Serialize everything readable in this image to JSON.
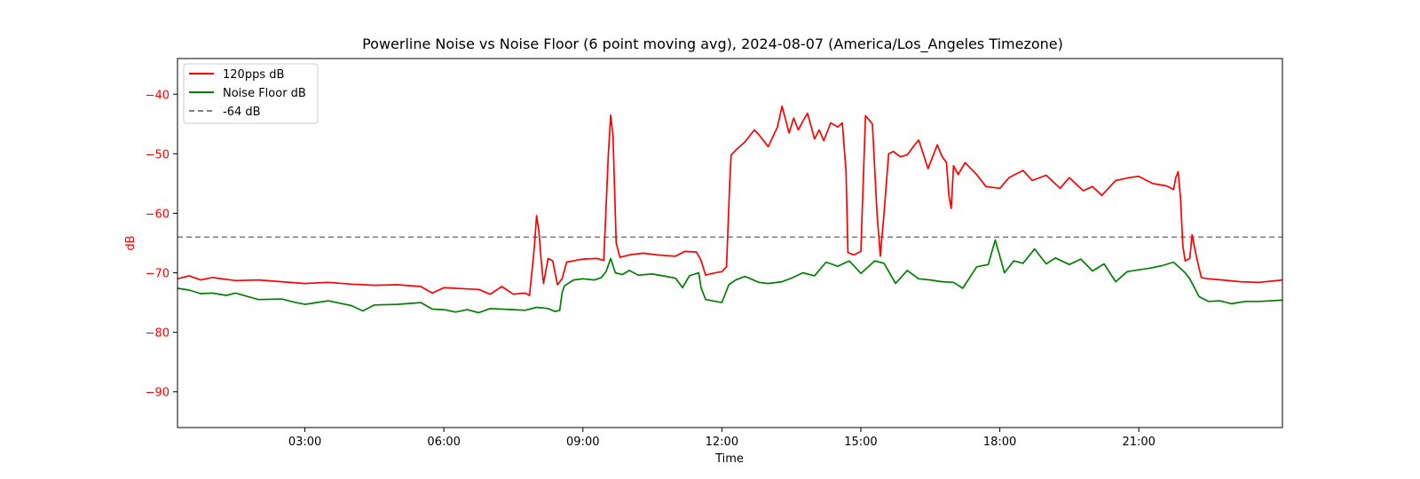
{
  "chart_data": {
    "type": "line",
    "title": "Powerline Noise vs Noise Floor (6 point moving avg), 2024-08-07 (America/Los_Angeles Timezone)",
    "xlabel": "Time",
    "ylabel": "dB",
    "x_unit": "hours since 00:00 (time of day)",
    "xlim": [
      0.25,
      24.1
    ],
    "ylim": [
      -96,
      -34
    ],
    "x_ticks": [
      3,
      6,
      9,
      12,
      15,
      18,
      21
    ],
    "x_tick_labels": [
      "03:00",
      "06:00",
      "09:00",
      "12:00",
      "15:00",
      "18:00",
      "21:00"
    ],
    "y_ticks": [
      -90,
      -80,
      -70,
      -60,
      -50,
      -40
    ],
    "y_tick_labels": [
      "−90",
      "−80",
      "−70",
      "−60",
      "−50",
      "−40"
    ],
    "grid": false,
    "legend_position": "upper-left",
    "reference_line": {
      "name": "-64 dB",
      "y": -64,
      "color": "#808080",
      "style": "dashed"
    },
    "series": [
      {
        "name": "120pps dB",
        "color": "#ff0000",
        "points": [
          [
            0.25,
            -71.0
          ],
          [
            0.5,
            -70.5
          ],
          [
            0.75,
            -71.2
          ],
          [
            1.0,
            -70.8
          ],
          [
            1.5,
            -71.3
          ],
          [
            2.0,
            -71.2
          ],
          [
            2.5,
            -71.5
          ],
          [
            3.0,
            -71.8
          ],
          [
            3.5,
            -71.6
          ],
          [
            4.0,
            -71.9
          ],
          [
            4.5,
            -72.1
          ],
          [
            5.0,
            -72.0
          ],
          [
            5.5,
            -72.3
          ],
          [
            5.75,
            -73.4
          ],
          [
            6.0,
            -72.5
          ],
          [
            6.5,
            -72.7
          ],
          [
            6.75,
            -72.8
          ],
          [
            7.0,
            -73.6
          ],
          [
            7.25,
            -72.3
          ],
          [
            7.5,
            -73.6
          ],
          [
            7.75,
            -73.4
          ],
          [
            7.85,
            -73.8
          ],
          [
            7.95,
            -66.0
          ],
          [
            8.0,
            -60.4
          ],
          [
            8.05,
            -63.0
          ],
          [
            8.1,
            -68.0
          ],
          [
            8.15,
            -71.8
          ],
          [
            8.25,
            -67.6
          ],
          [
            8.35,
            -68.0
          ],
          [
            8.45,
            -72.0
          ],
          [
            8.55,
            -71.0
          ],
          [
            8.65,
            -68.2
          ],
          [
            9.0,
            -67.7
          ],
          [
            9.3,
            -67.6
          ],
          [
            9.45,
            -67.9
          ],
          [
            9.55,
            -50.0
          ],
          [
            9.6,
            -43.5
          ],
          [
            9.65,
            -47.0
          ],
          [
            9.72,
            -65.0
          ],
          [
            9.8,
            -67.4
          ],
          [
            10.0,
            -67.0
          ],
          [
            10.3,
            -66.7
          ],
          [
            10.6,
            -67.0
          ],
          [
            11.0,
            -67.2
          ],
          [
            11.2,
            -66.4
          ],
          [
            11.45,
            -66.5
          ],
          [
            11.55,
            -67.9
          ],
          [
            11.65,
            -70.4
          ],
          [
            11.8,
            -70.1
          ],
          [
            12.0,
            -69.8
          ],
          [
            12.1,
            -69.0
          ],
          [
            12.17,
            -55.0
          ],
          [
            12.2,
            -50.2
          ],
          [
            12.3,
            -49.4
          ],
          [
            12.5,
            -48.0
          ],
          [
            12.7,
            -46.0
          ],
          [
            12.8,
            -46.8
          ],
          [
            13.0,
            -48.8
          ],
          [
            13.2,
            -45.5
          ],
          [
            13.3,
            -42.0
          ],
          [
            13.45,
            -46.5
          ],
          [
            13.55,
            -44.0
          ],
          [
            13.65,
            -46.0
          ],
          [
            13.75,
            -44.5
          ],
          [
            13.85,
            -43.2
          ],
          [
            14.0,
            -47.5
          ],
          [
            14.1,
            -46.0
          ],
          [
            14.2,
            -47.8
          ],
          [
            14.35,
            -44.8
          ],
          [
            14.5,
            -45.5
          ],
          [
            14.6,
            -44.8
          ],
          [
            14.68,
            -53.0
          ],
          [
            14.72,
            -66.6
          ],
          [
            14.85,
            -67.0
          ],
          [
            15.0,
            -66.4
          ],
          [
            15.05,
            -55.0
          ],
          [
            15.1,
            -43.6
          ],
          [
            15.25,
            -45.0
          ],
          [
            15.35,
            -60.0
          ],
          [
            15.42,
            -67.2
          ],
          [
            15.5,
            -60.0
          ],
          [
            15.6,
            -50.0
          ],
          [
            15.7,
            -49.6
          ],
          [
            15.85,
            -50.5
          ],
          [
            16.0,
            -50.2
          ],
          [
            16.15,
            -48.6
          ],
          [
            16.25,
            -47.7
          ],
          [
            16.45,
            -52.5
          ],
          [
            16.65,
            -48.5
          ],
          [
            16.75,
            -50.4
          ],
          [
            16.85,
            -51.5
          ],
          [
            16.9,
            -57.0
          ],
          [
            16.95,
            -59.2
          ],
          [
            17.0,
            -52.0
          ],
          [
            17.1,
            -53.5
          ],
          [
            17.25,
            -51.5
          ],
          [
            17.5,
            -53.5
          ],
          [
            17.7,
            -55.5
          ],
          [
            18.0,
            -55.8
          ],
          [
            18.2,
            -54.0
          ],
          [
            18.5,
            -52.8
          ],
          [
            18.7,
            -54.5
          ],
          [
            19.0,
            -53.6
          ],
          [
            19.3,
            -55.8
          ],
          [
            19.5,
            -54.0
          ],
          [
            19.8,
            -56.2
          ],
          [
            20.0,
            -55.5
          ],
          [
            20.2,
            -57.0
          ],
          [
            20.5,
            -54.5
          ],
          [
            20.8,
            -54.0
          ],
          [
            21.0,
            -53.8
          ],
          [
            21.3,
            -55.0
          ],
          [
            21.6,
            -55.4
          ],
          [
            21.75,
            -56.0
          ],
          [
            21.8,
            -54.0
          ],
          [
            21.85,
            -53.0
          ],
          [
            21.9,
            -57.5
          ],
          [
            21.95,
            -65.5
          ],
          [
            22.0,
            -68.0
          ],
          [
            22.1,
            -67.6
          ],
          [
            22.15,
            -63.6
          ],
          [
            22.25,
            -67.5
          ],
          [
            22.35,
            -70.8
          ],
          [
            22.5,
            -71.0
          ],
          [
            22.8,
            -71.2
          ],
          [
            23.2,
            -71.5
          ],
          [
            23.6,
            -71.6
          ],
          [
            24.1,
            -71.2
          ]
        ]
      },
      {
        "name": "Noise Floor dB",
        "color": "#008000",
        "points": [
          [
            0.25,
            -72.6
          ],
          [
            0.5,
            -72.9
          ],
          [
            0.75,
            -73.5
          ],
          [
            1.0,
            -73.4
          ],
          [
            1.3,
            -73.8
          ],
          [
            1.5,
            -73.4
          ],
          [
            2.0,
            -74.5
          ],
          [
            2.5,
            -74.4
          ],
          [
            2.75,
            -74.9
          ],
          [
            3.0,
            -75.3
          ],
          [
            3.5,
            -74.7
          ],
          [
            4.0,
            -75.5
          ],
          [
            4.25,
            -76.4
          ],
          [
            4.5,
            -75.4
          ],
          [
            5.0,
            -75.3
          ],
          [
            5.5,
            -75.0
          ],
          [
            5.75,
            -76.1
          ],
          [
            6.0,
            -76.2
          ],
          [
            6.25,
            -76.6
          ],
          [
            6.5,
            -76.2
          ],
          [
            6.75,
            -76.7
          ],
          [
            7.0,
            -76.0
          ],
          [
            7.5,
            -76.2
          ],
          [
            7.75,
            -76.3
          ],
          [
            8.0,
            -75.8
          ],
          [
            8.25,
            -76.0
          ],
          [
            8.4,
            -76.5
          ],
          [
            8.5,
            -76.3
          ],
          [
            8.55,
            -73.4
          ],
          [
            8.6,
            -72.2
          ],
          [
            8.8,
            -71.2
          ],
          [
            9.0,
            -71.0
          ],
          [
            9.25,
            -71.2
          ],
          [
            9.4,
            -70.8
          ],
          [
            9.5,
            -69.8
          ],
          [
            9.6,
            -67.6
          ],
          [
            9.7,
            -70.0
          ],
          [
            9.85,
            -70.3
          ],
          [
            10.0,
            -69.6
          ],
          [
            10.2,
            -70.4
          ],
          [
            10.5,
            -70.2
          ],
          [
            10.8,
            -70.6
          ],
          [
            11.0,
            -70.9
          ],
          [
            11.15,
            -72.5
          ],
          [
            11.3,
            -70.5
          ],
          [
            11.5,
            -70.0
          ],
          [
            11.55,
            -72.5
          ],
          [
            11.65,
            -74.5
          ],
          [
            12.0,
            -75.0
          ],
          [
            12.15,
            -72.0
          ],
          [
            12.3,
            -71.2
          ],
          [
            12.5,
            -70.6
          ],
          [
            12.8,
            -71.6
          ],
          [
            13.0,
            -71.8
          ],
          [
            13.3,
            -71.5
          ],
          [
            13.5,
            -70.9
          ],
          [
            13.75,
            -70.0
          ],
          [
            14.0,
            -70.5
          ],
          [
            14.25,
            -68.2
          ],
          [
            14.5,
            -68.9
          ],
          [
            14.75,
            -68.0
          ],
          [
            15.0,
            -70.1
          ],
          [
            15.3,
            -68.0
          ],
          [
            15.5,
            -68.4
          ],
          [
            15.75,
            -71.8
          ],
          [
            16.0,
            -69.6
          ],
          [
            16.25,
            -71.0
          ],
          [
            16.5,
            -71.2
          ],
          [
            16.75,
            -71.5
          ],
          [
            17.0,
            -71.6
          ],
          [
            17.2,
            -72.6
          ],
          [
            17.5,
            -69.0
          ],
          [
            17.75,
            -68.6
          ],
          [
            17.9,
            -64.5
          ],
          [
            18.1,
            -70.0
          ],
          [
            18.3,
            -68.0
          ],
          [
            18.5,
            -68.4
          ],
          [
            18.75,
            -66.0
          ],
          [
            19.0,
            -68.5
          ],
          [
            19.2,
            -67.5
          ],
          [
            19.5,
            -68.6
          ],
          [
            19.75,
            -67.7
          ],
          [
            20.0,
            -69.7
          ],
          [
            20.25,
            -68.5
          ],
          [
            20.5,
            -71.5
          ],
          [
            20.75,
            -69.8
          ],
          [
            21.0,
            -69.5
          ],
          [
            21.25,
            -69.2
          ],
          [
            21.5,
            -68.8
          ],
          [
            21.75,
            -68.2
          ],
          [
            22.0,
            -70.0
          ],
          [
            22.1,
            -71.0
          ],
          [
            22.2,
            -72.5
          ],
          [
            22.3,
            -74.0
          ],
          [
            22.5,
            -74.8
          ],
          [
            22.75,
            -74.7
          ],
          [
            23.0,
            -75.2
          ],
          [
            23.3,
            -74.8
          ],
          [
            23.6,
            -74.8
          ],
          [
            24.1,
            -74.6
          ]
        ]
      }
    ]
  }
}
